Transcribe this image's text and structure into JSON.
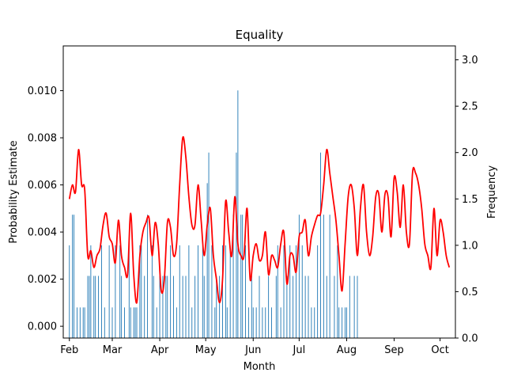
{
  "chart_data": {
    "type": "bar",
    "title": "Equality",
    "xlabel": "Month",
    "ylabel": "Probability Estimate",
    "y2label": "Frequency",
    "x_ticks": [
      "Feb",
      "Mar",
      "Apr",
      "May",
      "Jun",
      "Jul",
      "Aug",
      "Sep",
      "Oct"
    ],
    "x_range_days": [
      -4,
      252
    ],
    "y_ticks": [
      "0.000",
      "0.002",
      "0.004",
      "0.006",
      "0.008",
      "0.010"
    ],
    "ylim": [
      -0.0005,
      0.0119
    ],
    "y2_ticks": [
      "0.0",
      "0.5",
      "1.0",
      "1.5",
      "2.0",
      "2.5",
      "3.0"
    ],
    "y2lim": [
      0,
      3.15
    ],
    "grid": false,
    "colors": {
      "bars": "#1f77b4",
      "line": "#ff0000"
    },
    "series": [
      {
        "type": "bar",
        "axis": "right",
        "values": [
          1,
          0,
          1.33,
          1.33,
          0,
          0.33,
          0,
          0.33,
          0,
          0.33,
          0.33,
          0,
          0.67,
          0.67,
          1,
          0,
          0.67,
          0.67,
          0,
          0.67,
          0,
          1,
          0,
          0.33,
          0,
          0,
          1,
          0,
          0.33,
          0,
          1,
          0,
          0,
          1,
          0.67,
          0,
          0.33,
          0,
          0,
          1,
          0.33,
          0,
          0.33,
          0.33,
          0.33,
          0,
          1,
          1,
          0,
          0.67,
          0,
          1.33,
          0,
          0,
          1,
          0.67,
          0,
          0.33,
          0,
          0.67,
          0,
          0.67,
          0,
          0.67,
          0.67,
          0,
          1,
          0,
          0.67,
          0,
          0.33,
          0,
          1,
          0,
          0.67,
          0,
          0.67,
          0,
          1,
          0,
          0.33,
          0,
          0.67,
          0,
          1,
          0,
          0,
          1,
          0.67,
          0,
          1.67,
          2,
          0,
          1,
          0,
          0.33,
          0.67,
          0,
          0.67,
          0,
          1,
          0,
          1,
          0.33,
          0,
          1,
          0,
          1.33,
          0,
          2,
          2.67,
          0,
          1.33,
          1.33,
          0,
          1,
          0,
          0.33,
          0,
          0.67,
          0.33,
          0,
          0.33,
          0,
          0.67,
          0,
          0.33,
          0,
          0.33,
          0,
          0.67,
          0,
          0.33,
          0,
          0,
          0.67,
          1,
          0,
          0.33,
          0,
          1,
          0,
          0.67,
          0,
          1,
          0,
          0.67,
          0,
          1,
          0,
          1.33,
          0,
          1,
          0,
          0.67,
          0,
          0.67,
          0,
          0.33,
          0,
          0.33,
          0,
          1,
          0,
          2,
          0,
          1.33,
          0,
          0.67,
          0,
          1.33,
          0,
          0,
          0.67,
          0,
          1,
          0.33,
          0,
          0.33,
          0,
          0.33,
          0.33,
          0,
          0.67,
          0,
          0,
          0.67,
          0,
          0.67,
          0
        ]
      },
      {
        "type": "line",
        "axis": "left",
        "points": [
          [
            0,
            0.0054
          ],
          [
            2,
            0.006
          ],
          [
            4,
            0.0057
          ],
          [
            6,
            0.0075
          ],
          [
            8,
            0.006
          ],
          [
            10,
            0.0058
          ],
          [
            12,
            0.003
          ],
          [
            14,
            0.0032
          ],
          [
            16,
            0.0025
          ],
          [
            18,
            0.003
          ],
          [
            20,
            0.0033
          ],
          [
            22,
            0.0043
          ],
          [
            24,
            0.0048
          ],
          [
            26,
            0.0038
          ],
          [
            28,
            0.0035
          ],
          [
            30,
            0.0027
          ],
          [
            32,
            0.0045
          ],
          [
            34,
            0.003
          ],
          [
            36,
            0.0025
          ],
          [
            38,
            0.0022
          ],
          [
            40,
            0.0048
          ],
          [
            42,
            0.0022
          ],
          [
            44,
            0.001
          ],
          [
            46,
            0.003
          ],
          [
            48,
            0.004
          ],
          [
            50,
            0.0044
          ],
          [
            52,
            0.0046
          ],
          [
            54,
            0.003
          ],
          [
            56,
            0.0044
          ],
          [
            58,
            0.0035
          ],
          [
            60,
            0.0015
          ],
          [
            62,
            0.002
          ],
          [
            64,
            0.0044
          ],
          [
            66,
            0.0042
          ],
          [
            68,
            0.003
          ],
          [
            70,
            0.0035
          ],
          [
            72,
            0.006
          ],
          [
            74,
            0.008
          ],
          [
            76,
            0.0072
          ],
          [
            78,
            0.0055
          ],
          [
            80,
            0.0043
          ],
          [
            82,
            0.0043
          ],
          [
            84,
            0.006
          ],
          [
            86,
            0.0045
          ],
          [
            88,
            0.003
          ],
          [
            90,
            0.0043
          ],
          [
            92,
            0.005
          ],
          [
            94,
            0.003
          ],
          [
            96,
            0.002
          ],
          [
            98,
            0.001
          ],
          [
            100,
            0.002
          ],
          [
            102,
            0.0053
          ],
          [
            104,
            0.004
          ],
          [
            106,
            0.003
          ],
          [
            108,
            0.0055
          ],
          [
            110,
            0.0035
          ],
          [
            112,
            0.003
          ],
          [
            114,
            0.003
          ],
          [
            116,
            0.005
          ],
          [
            118,
            0.002
          ],
          [
            120,
            0.003
          ],
          [
            122,
            0.0035
          ],
          [
            124,
            0.0028
          ],
          [
            126,
            0.003
          ],
          [
            128,
            0.004
          ],
          [
            130,
            0.0022
          ],
          [
            132,
            0.003
          ],
          [
            134,
            0.0028
          ],
          [
            136,
            0.0025
          ],
          [
            138,
            0.0035
          ],
          [
            140,
            0.004
          ],
          [
            142,
            0.0018
          ],
          [
            144,
            0.003
          ],
          [
            146,
            0.003
          ],
          [
            148,
            0.0023
          ],
          [
            150,
            0.0038
          ],
          [
            152,
            0.004
          ],
          [
            154,
            0.0045
          ],
          [
            156,
            0.003
          ],
          [
            158,
            0.0038
          ],
          [
            160,
            0.0043
          ],
          [
            162,
            0.0047
          ],
          [
            164,
            0.0048
          ],
          [
            166,
            0.006
          ],
          [
            168,
            0.0075
          ],
          [
            170,
            0.0065
          ],
          [
            172,
            0.0055
          ],
          [
            174,
            0.0045
          ],
          [
            176,
            0.003
          ],
          [
            178,
            0.0015
          ],
          [
            180,
            0.0035
          ],
          [
            182,
            0.0055
          ],
          [
            184,
            0.006
          ],
          [
            186,
            0.005
          ],
          [
            188,
            0.003
          ],
          [
            190,
            0.005
          ],
          [
            192,
            0.006
          ],
          [
            194,
            0.004
          ],
          [
            196,
            0.003
          ],
          [
            198,
            0.0038
          ],
          [
            200,
            0.0055
          ],
          [
            202,
            0.0056
          ],
          [
            204,
            0.004
          ],
          [
            206,
            0.0056
          ],
          [
            208,
            0.0055
          ],
          [
            210,
            0.0038
          ],
          [
            212,
            0.0063
          ],
          [
            214,
            0.0057
          ],
          [
            216,
            0.0042
          ],
          [
            218,
            0.006
          ],
          [
            220,
            0.004
          ],
          [
            222,
            0.0035
          ],
          [
            224,
            0.0065
          ],
          [
            226,
            0.0065
          ],
          [
            228,
            0.006
          ],
          [
            230,
            0.005
          ],
          [
            232,
            0.0035
          ],
          [
            234,
            0.003
          ],
          [
            236,
            0.0025
          ],
          [
            238,
            0.005
          ],
          [
            240,
            0.003
          ],
          [
            242,
            0.0045
          ],
          [
            244,
            0.004
          ],
          [
            246,
            0.003
          ],
          [
            248,
            0.0025
          ]
        ]
      }
    ]
  }
}
